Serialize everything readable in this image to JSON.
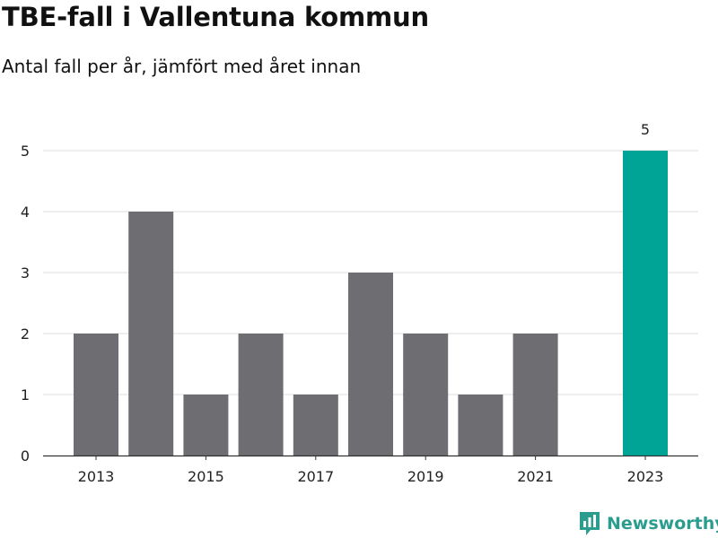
{
  "header": {
    "title": "TBE-fall i Vallentuna kommun",
    "subtitle": "Antal fall per år, jämfört med året innan"
  },
  "brand": {
    "name": "Newsworthy",
    "color": "#2a9d8f",
    "icon": "newsworthy-logo-icon"
  },
  "colors": {
    "bar_default": "#6e6d72",
    "bar_highlight": "#00a497",
    "grid": "#dddddd",
    "axis": "#333333"
  },
  "chart_data": {
    "type": "bar",
    "title": "TBE-fall i Vallentuna kommun",
    "subtitle": "Antal fall per år, jämfört med året innan",
    "xlabel": "",
    "ylabel": "",
    "categories": [
      "2013",
      "2014",
      "2015",
      "2016",
      "2017",
      "2018",
      "2019",
      "2020",
      "2021",
      "2022",
      "2023"
    ],
    "values": [
      2,
      4,
      1,
      2,
      1,
      3,
      2,
      1,
      2,
      null,
      5
    ],
    "highlight": [
      false,
      false,
      false,
      false,
      false,
      false,
      false,
      false,
      false,
      false,
      true
    ],
    "x_tick_labels": [
      "2013",
      "2015",
      "2017",
      "2019",
      "2021",
      "2023"
    ],
    "y_ticks": [
      0,
      1,
      2,
      3,
      4,
      5
    ],
    "ylim": [
      0,
      5
    ],
    "grid": true,
    "data_labels": [
      {
        "category": "2023",
        "value": 5,
        "text": "5"
      }
    ],
    "legend": "none"
  }
}
